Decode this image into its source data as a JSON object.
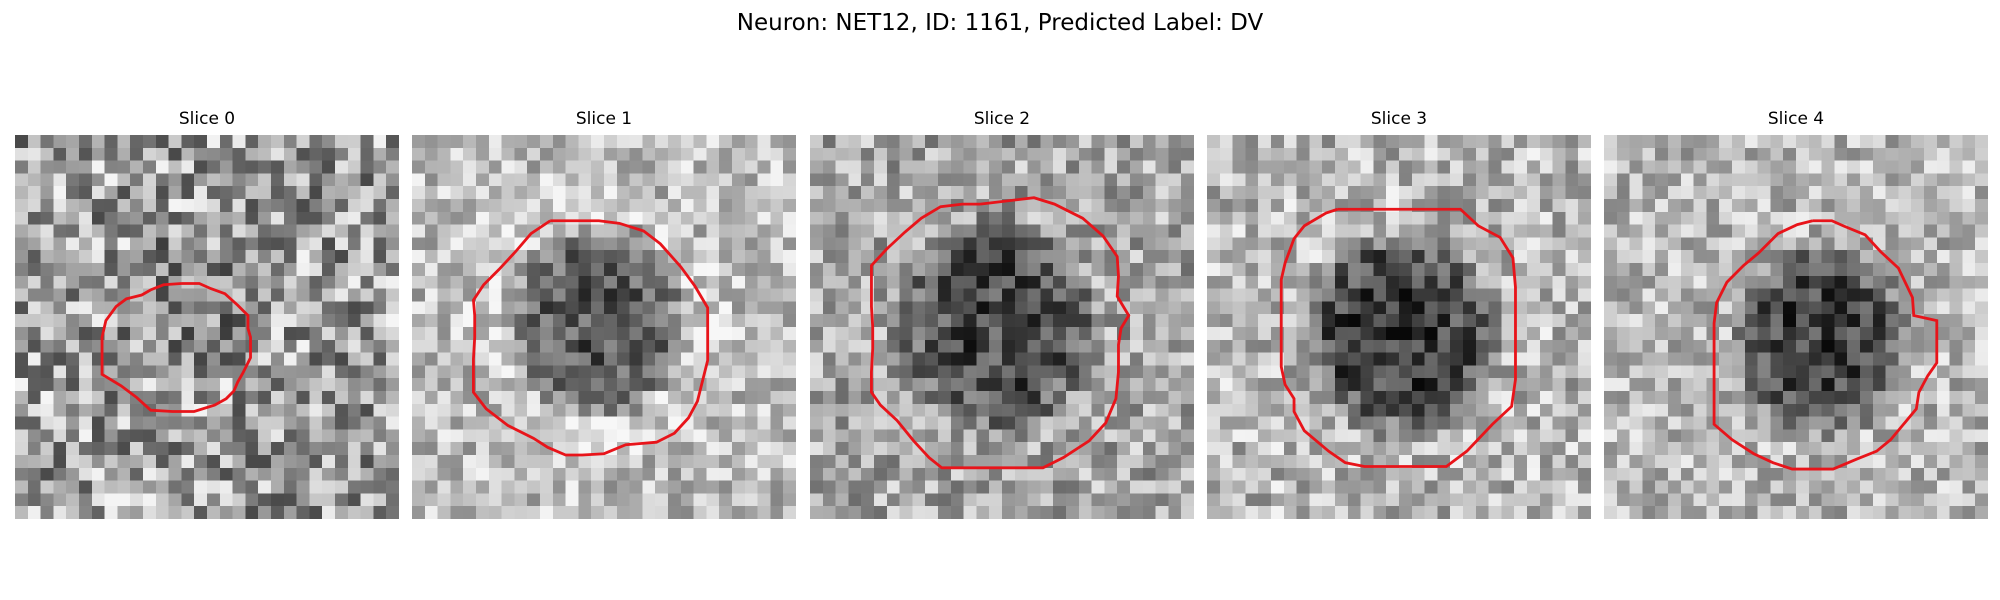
{
  "figure": {
    "title": "Neuron: NET12, ID: 1161, Predicted Label: DV"
  },
  "panels": [
    {
      "title": "Slice 0"
    },
    {
      "title": "Slice 1"
    },
    {
      "title": "Slice 2"
    },
    {
      "title": "Slice 3"
    },
    {
      "title": "Slice 4"
    }
  ],
  "colors": {
    "roi_outline": "#e8141a",
    "background": "#ffffff"
  }
}
